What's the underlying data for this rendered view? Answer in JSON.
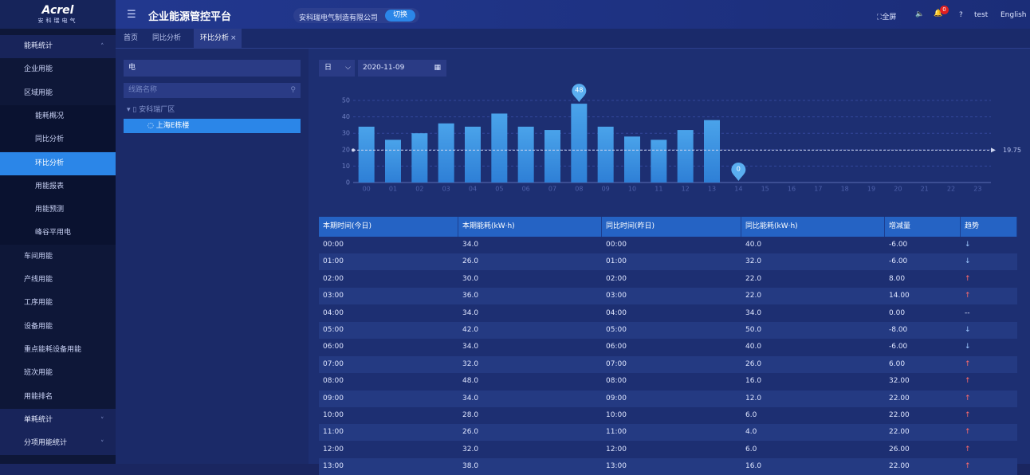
{
  "header": {
    "logo": "Acrel",
    "logo_sub": "安科瑞电气",
    "title": "企业能源管控平台",
    "company": "安科瑞电气制造有限公司",
    "switch_button": "切换",
    "fullscreen": "全屏",
    "notifications": "0",
    "user": "test",
    "language": "English"
  },
  "sidebar": {
    "groups": [
      {
        "label": "能耗统计",
        "items": [
          {
            "label": "企业用能"
          },
          {
            "label": "区域用能",
            "children": [
              "能耗概况",
              "同比分析",
              "环比分析",
              "用能报表",
              "用能预测",
              "峰谷平用电"
            ]
          },
          {
            "label": "车间用能"
          },
          {
            "label": "产线用能"
          },
          {
            "label": "工序用能"
          },
          {
            "label": "设备用能"
          },
          {
            "label": "重点能耗设备用能"
          },
          {
            "label": "班次用能"
          },
          {
            "label": "用能排名"
          }
        ]
      },
      {
        "label": "单耗统计"
      },
      {
        "label": "分项用能统计"
      }
    ]
  },
  "tabs": [
    "首页",
    "同比分析",
    "环比分析"
  ],
  "filter": {
    "energy_type": "电",
    "search_placeholder": "线路名称",
    "tree": {
      "root": "安科瑞厂区",
      "children": [
        "上海E栋楼"
      ]
    }
  },
  "query": {
    "period": "日",
    "date": "2020-11-09"
  },
  "chart_data": {
    "type": "bar",
    "categories": [
      "00",
      "01",
      "02",
      "03",
      "04",
      "05",
      "06",
      "07",
      "08",
      "09",
      "10",
      "11",
      "12",
      "13",
      "14",
      "15",
      "16",
      "17",
      "18",
      "19",
      "20",
      "21",
      "22",
      "23"
    ],
    "values": [
      34,
      26,
      30,
      36,
      34,
      42,
      34,
      32,
      48,
      34,
      28,
      26,
      32,
      38,
      0,
      null,
      null,
      null,
      null,
      null,
      null,
      null,
      null,
      null
    ],
    "color": "#4aa3ea",
    "ylim": [
      0,
      50
    ],
    "yticks": [
      0,
      10,
      20,
      30,
      40,
      50
    ],
    "grid": true,
    "average": 19.75
  },
  "table": {
    "columns": [
      "本期时间(今日)",
      "本期能耗(kW·h)",
      "同比时间(昨日)",
      "同比能耗(kW·h)",
      "增减量",
      "趋势"
    ],
    "rows": [
      [
        "00:00",
        "34.0",
        "00:00",
        "40.0",
        "-6.00",
        "↓"
      ],
      [
        "01:00",
        "26.0",
        "01:00",
        "32.0",
        "-6.00",
        "↓"
      ],
      [
        "02:00",
        "30.0",
        "02:00",
        "22.0",
        "8.00",
        "↑"
      ],
      [
        "03:00",
        "36.0",
        "03:00",
        "22.0",
        "14.00",
        "↑"
      ],
      [
        "04:00",
        "34.0",
        "04:00",
        "34.0",
        "0.00",
        "--"
      ],
      [
        "05:00",
        "42.0",
        "05:00",
        "50.0",
        "-8.00",
        "↓"
      ],
      [
        "06:00",
        "34.0",
        "06:00",
        "40.0",
        "-6.00",
        "↓"
      ],
      [
        "07:00",
        "32.0",
        "07:00",
        "26.0",
        "6.00",
        "↑"
      ],
      [
        "08:00",
        "48.0",
        "08:00",
        "16.0",
        "32.00",
        "↑"
      ],
      [
        "09:00",
        "34.0",
        "09:00",
        "12.0",
        "22.00",
        "↑"
      ],
      [
        "10:00",
        "28.0",
        "10:00",
        "6.0",
        "22.00",
        "↑"
      ],
      [
        "11:00",
        "26.0",
        "11:00",
        "4.0",
        "22.00",
        "↑"
      ],
      [
        "12:00",
        "32.0",
        "12:00",
        "6.0",
        "26.00",
        "↑"
      ],
      [
        "13:00",
        "38.0",
        "13:00",
        "16.0",
        "22.00",
        "↑"
      ]
    ]
  }
}
